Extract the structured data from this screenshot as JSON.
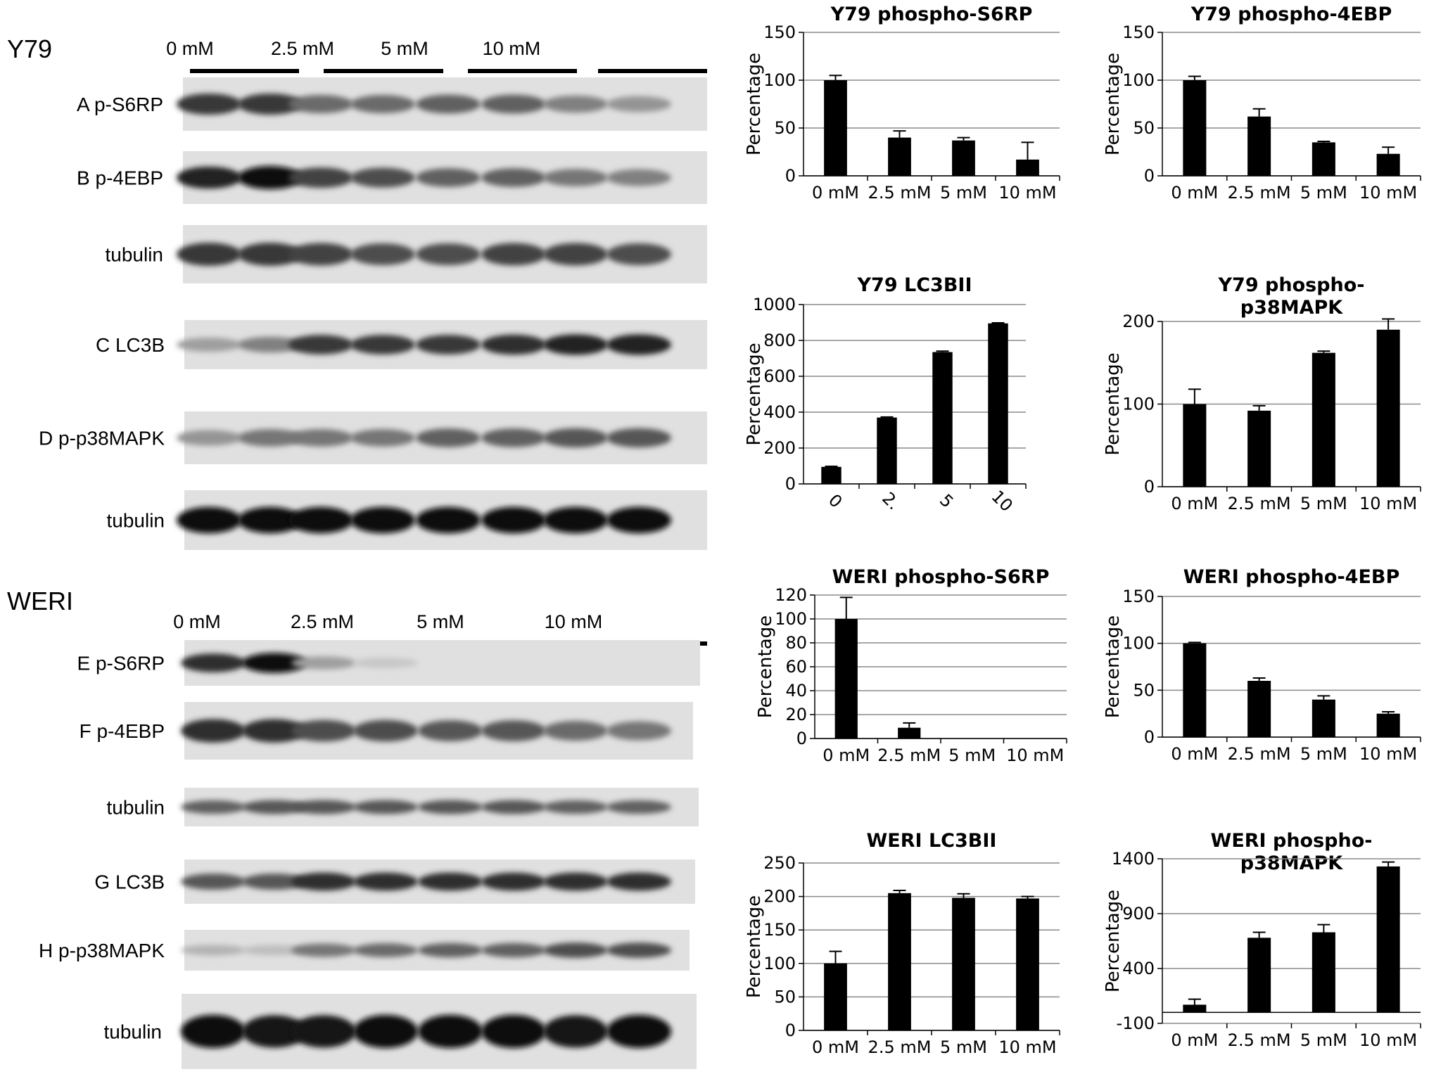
{
  "blots": {
    "y79": {
      "label": "Y79",
      "doses": [
        "0 mM",
        "2.5 mM",
        "5 mM",
        "10 mM"
      ],
      "rows": [
        {
          "label": "A  p-S6RP",
          "intensity": [
            0.8,
            0.8,
            0.55,
            0.55,
            0.6,
            0.6,
            0.45,
            0.35
          ]
        },
        {
          "label": "B  p-4EBP",
          "intensity": [
            0.9,
            1.0,
            0.75,
            0.7,
            0.6,
            0.6,
            0.5,
            0.45
          ]
        },
        {
          "label": "tubulin",
          "intensity": [
            0.8,
            0.8,
            0.75,
            0.7,
            0.7,
            0.75,
            0.75,
            0.7
          ]
        },
        {
          "label": "C  LC3B",
          "intensity": [
            0.3,
            0.45,
            0.8,
            0.8,
            0.8,
            0.85,
            0.9,
            0.9
          ]
        },
        {
          "label": "D  p-p38MAPK",
          "intensity": [
            0.35,
            0.5,
            0.5,
            0.5,
            0.6,
            0.6,
            0.65,
            0.65
          ]
        },
        {
          "label": "tubulin",
          "intensity": [
            1.0,
            1.0,
            1.0,
            1.0,
            1.0,
            1.0,
            1.0,
            1.0
          ]
        }
      ]
    },
    "weri": {
      "label": "WERI",
      "doses": [
        "0 mM",
        "2.5 mM",
        "5 mM",
        "10 mM"
      ],
      "rows": [
        {
          "label": "E  p-S6RP",
          "intensity": [
            0.85,
            1.0,
            0.3,
            0.1,
            0.0,
            0.0,
            0.0,
            0.0
          ]
        },
        {
          "label": "F  p-4EBP",
          "intensity": [
            0.85,
            0.85,
            0.7,
            0.7,
            0.65,
            0.65,
            0.55,
            0.5
          ]
        },
        {
          "label": "tubulin",
          "intensity": [
            0.6,
            0.65,
            0.65,
            0.65,
            0.65,
            0.65,
            0.6,
            0.6
          ]
        },
        {
          "label": "G  LC3B",
          "intensity": [
            0.65,
            0.65,
            0.85,
            0.85,
            0.85,
            0.85,
            0.85,
            0.85
          ]
        },
        {
          "label": "H  p-p38MAPK",
          "intensity": [
            0.2,
            0.15,
            0.5,
            0.55,
            0.6,
            0.6,
            0.7,
            0.7
          ]
        },
        {
          "label": "tubulin",
          "intensity": [
            1.0,
            0.95,
            0.95,
            1.0,
            1.0,
            1.0,
            0.95,
            1.0
          ]
        }
      ]
    }
  },
  "chart_data": [
    {
      "type": "bar",
      "title": [
        "Y79 phospho-S6RP"
      ],
      "ylabel": "Percentage",
      "categories": [
        "0 mM",
        "2.5 mM",
        "5 mM",
        "10 mM"
      ],
      "values": [
        100,
        40,
        37,
        17
      ],
      "errors": [
        5,
        7,
        3,
        18
      ],
      "ylim": [
        0,
        150
      ],
      "yticks": [
        0,
        50,
        100,
        150
      ],
      "grid": true
    },
    {
      "type": "bar",
      "title": [
        "Y79 phospho-4EBP"
      ],
      "ylabel": "Percentage",
      "categories": [
        "0 mM",
        "2.5 mM",
        "5 mM",
        "10 mM"
      ],
      "values": [
        100,
        62,
        35,
        23
      ],
      "errors": [
        4,
        8,
        1,
        7
      ],
      "ylim": [
        0,
        150
      ],
      "yticks": [
        0,
        50,
        100,
        150
      ],
      "grid": true
    },
    {
      "type": "bar",
      "title": [
        "Y79 LC3BII"
      ],
      "ylabel": "Percentage",
      "categories": [
        "0",
        "2.",
        "5",
        "10"
      ],
      "rotate_ticks": true,
      "values": [
        95,
        370,
        735,
        895
      ],
      "errors": [
        3,
        3,
        5,
        3
      ],
      "ylim": [
        0,
        1000
      ],
      "yticks": [
        0,
        200,
        400,
        600,
        800,
        1000
      ],
      "grid": true
    },
    {
      "type": "bar",
      "title": [
        "Y79 phospho-",
        "p38MAPK"
      ],
      "ylabel": "Percentage",
      "categories": [
        "0 mM",
        "2.5 mM",
        "5 mM",
        "10 mM"
      ],
      "values": [
        100,
        92,
        162,
        190
      ],
      "errors": [
        18,
        6,
        2,
        13
      ],
      "ylim": [
        0,
        200
      ],
      "yticks": [
        0,
        100,
        200
      ],
      "grid": true
    },
    {
      "type": "bar",
      "title": [
        "WERI phospho-S6RP"
      ],
      "ylabel": "Percentage",
      "categories": [
        "0 mM",
        "2.5 mM",
        "5 mM",
        "10 mM"
      ],
      "values": [
        100,
        9,
        0,
        0
      ],
      "errors": [
        18,
        4,
        0,
        0
      ],
      "ylim": [
        0,
        120
      ],
      "yticks": [
        0,
        20,
        40,
        60,
        80,
        100,
        120
      ],
      "grid": true
    },
    {
      "type": "bar",
      "title": [
        "WERI phospho-4EBP"
      ],
      "ylabel": "Percentage",
      "categories": [
        "0 mM",
        "2.5 mM",
        "5 mM",
        "10 mM"
      ],
      "values": [
        100,
        60,
        40,
        25
      ],
      "errors": [
        1,
        3,
        4,
        2
      ],
      "ylim": [
        0,
        150
      ],
      "yticks": [
        0,
        50,
        100,
        150
      ],
      "grid": true
    },
    {
      "type": "bar",
      "title": [
        "WERI LC3BII"
      ],
      "ylabel": "Percentage",
      "categories": [
        "0 mM",
        "2.5 mM",
        "5 mM",
        "10 mM"
      ],
      "values": [
        100,
        205,
        198,
        197
      ],
      "errors": [
        18,
        4,
        6,
        3
      ],
      "ylim": [
        0,
        250
      ],
      "yticks": [
        0,
        50,
        100,
        150,
        200,
        250
      ],
      "grid": true
    },
    {
      "type": "bar",
      "title": [
        "WERI phospho-",
        "p38MAPK"
      ],
      "ylabel": "Percentage",
      "categories": [
        "0 mM",
        "2.5 mM",
        "5 mM",
        "10 mM"
      ],
      "values": [
        70,
        680,
        730,
        1330
      ],
      "errors": [
        50,
        50,
        70,
        40
      ],
      "ylim": [
        -100,
        1400
      ],
      "yticks": [
        -100,
        400,
        900,
        1400
      ],
      "grid": true
    }
  ]
}
